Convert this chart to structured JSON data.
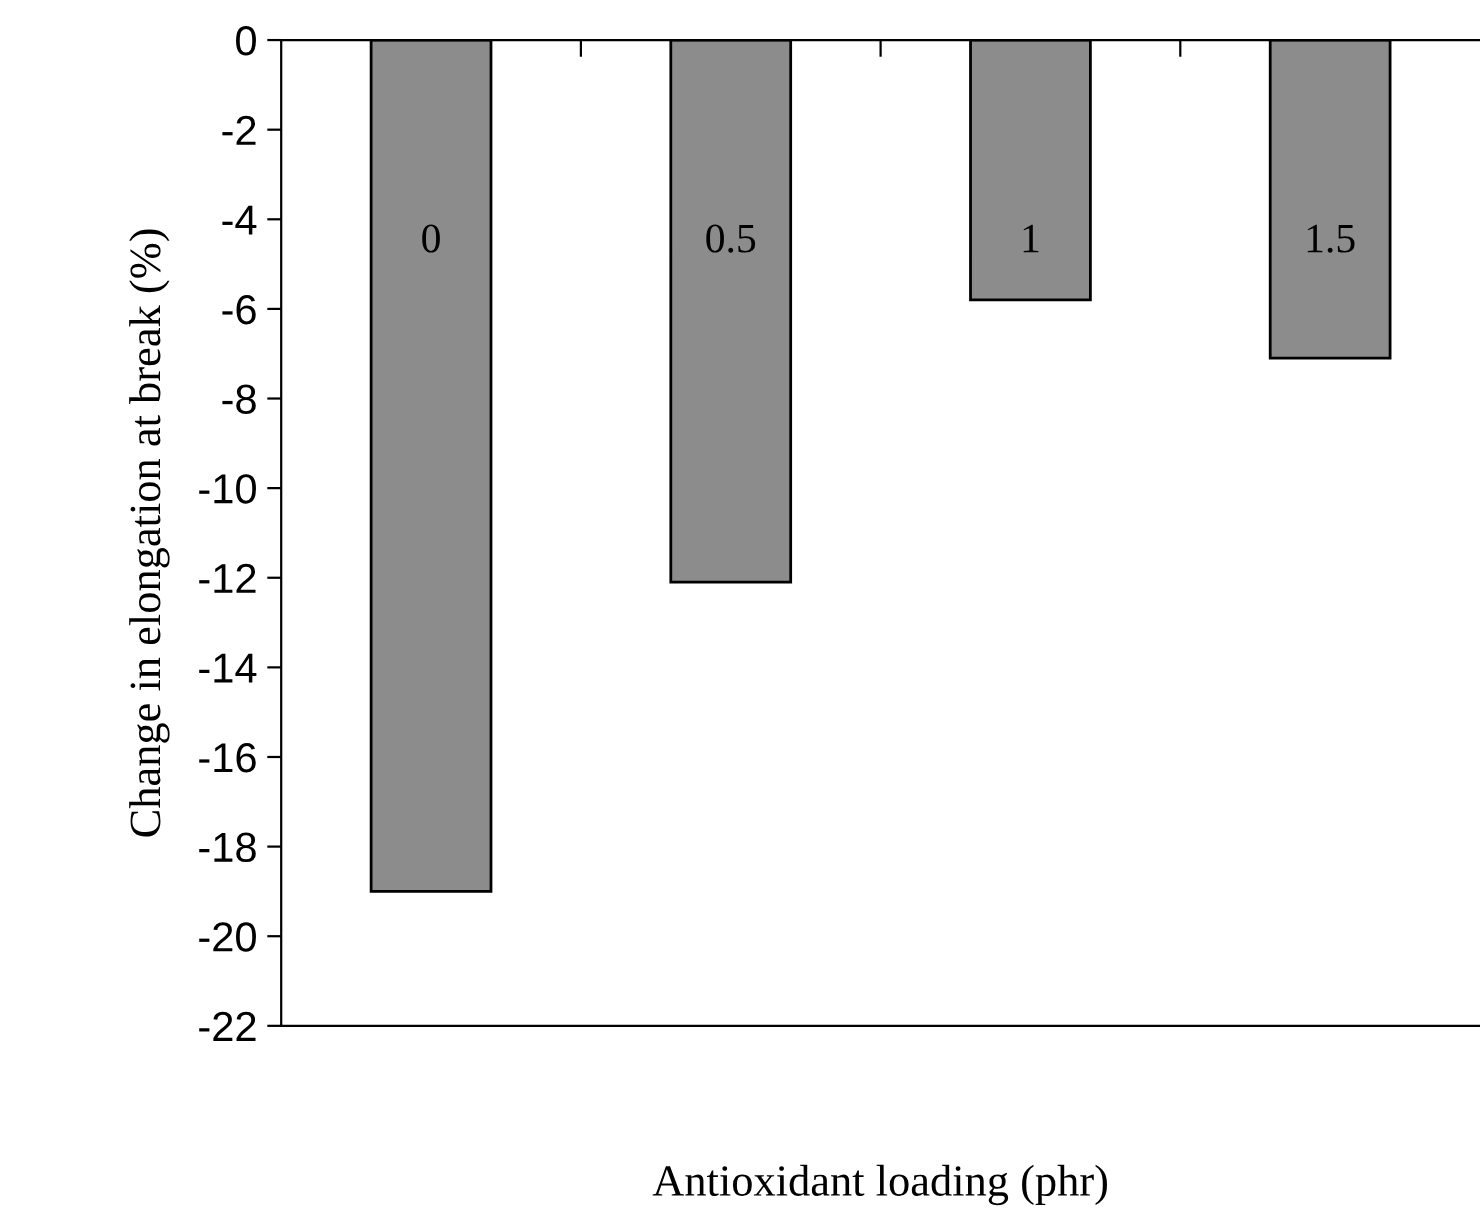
{
  "chart_data": {
    "type": "bar",
    "xlabel": "Antioxidant loading (phr)",
    "ylabel": "Change in elongation at break (%)",
    "categories": [
      "0",
      "0.5",
      "1",
      "1.5"
    ],
    "values": [
      -19,
      -12.1,
      -5.8,
      -7.1
    ],
    "color": "#8c8c8c",
    "ylim": [
      -22,
      0
    ],
    "yticks": [
      0,
      -2,
      -4,
      -6,
      -8,
      -10,
      -12,
      -14,
      -16,
      -18,
      -20,
      -22
    ],
    "grid": false
  }
}
